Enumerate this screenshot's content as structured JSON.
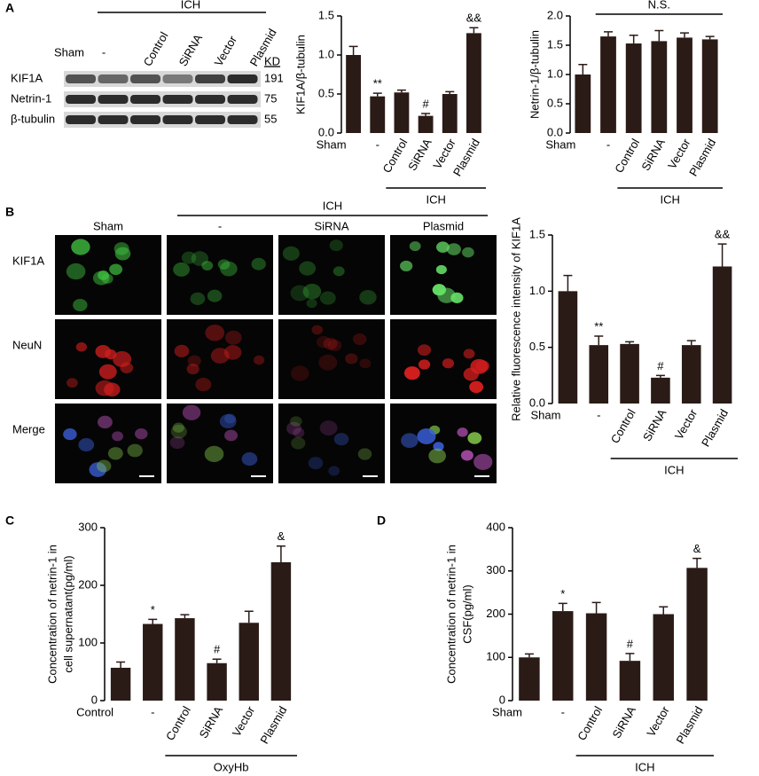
{
  "panel_labels": [
    "A",
    "B",
    "C",
    "D"
  ],
  "blot": {
    "group_label": "ICH",
    "lanes": [
      "Sham",
      "-",
      "Control",
      "SiRNA",
      "Vector",
      "Plasmid"
    ],
    "rows": [
      "KIF1A",
      "Netrin-1",
      "β-tubulin"
    ],
    "size_header": "KD",
    "sizes": [
      "191",
      "75",
      "55"
    ]
  },
  "images": {
    "group_label": "ICH",
    "columns": [
      "Sham",
      "-",
      "SiRNA",
      "Plasmid"
    ],
    "rows": [
      "KIF1A",
      "NeuN",
      "Merge"
    ]
  },
  "chart_data": [
    {
      "type": "bar",
      "y_label": [
        "KIF1A/β-tubulin"
      ],
      "categories": [
        "Sham",
        "-",
        "Control",
        "SiRNA",
        "Vector",
        "Plasmid"
      ],
      "values": [
        1.0,
        0.47,
        0.52,
        0.22,
        0.5,
        1.28
      ],
      "errors": [
        0.11,
        0.04,
        0.03,
        0.03,
        0.03,
        0.07
      ],
      "annotations": [
        null,
        "**",
        null,
        "#",
        null,
        "&&"
      ],
      "group_label": "ICH",
      "color": "#2b1b17",
      "ylim": [
        0,
        1.5
      ],
      "yticks": [
        {
          "value": 0,
          "label": "0.0"
        },
        0.5,
        {
          "value": 1,
          "label": "1.0"
        },
        1.5
      ]
    },
    {
      "type": "bar",
      "y_label": [
        "Netrin-1/β-tubulin"
      ],
      "categories": [
        "Sham",
        "-",
        "Control",
        "SiRNA",
        "Vector",
        "Plasmid"
      ],
      "values": [
        1.0,
        1.65,
        1.53,
        1.57,
        1.63,
        1.6
      ],
      "errors": [
        0.17,
        0.08,
        0.14,
        0.18,
        0.08,
        0.05
      ],
      "annotations": [
        null,
        null,
        null,
        null,
        null,
        null
      ],
      "top_label": "N.S.",
      "group_label": "ICH",
      "color": "#2b1b17",
      "ylim": [
        0,
        2
      ],
      "yticks": [
        {
          "value": 0,
          "label": "0.0"
        },
        0.5,
        {
          "value": 1,
          "label": "1.0"
        },
        1.5,
        {
          "value": 2,
          "label": "2.0"
        }
      ]
    },
    {
      "type": "bar",
      "y_label": [
        "Relative fluorescence intensity of KIF1A"
      ],
      "categories": [
        "Sham",
        "-",
        "Control",
        "SiRNA",
        "Vector",
        "Plasmid"
      ],
      "values": [
        1.0,
        0.52,
        0.53,
        0.23,
        0.52,
        1.22
      ],
      "errors": [
        0.14,
        0.08,
        0.02,
        0.02,
        0.04,
        0.2
      ],
      "annotations": [
        null,
        "**",
        null,
        "#",
        null,
        "&&"
      ],
      "group_label": "ICH",
      "color": "#2b1b17",
      "ylim": [
        0,
        1.5
      ],
      "yticks": [
        {
          "value": 0,
          "label": "0.0"
        },
        0.5,
        {
          "value": 1,
          "label": "1.0"
        },
        1.5
      ]
    },
    {
      "type": "bar",
      "y_label": [
        "Concentration of netrin-1 in",
        "cell supernatant(pg/ml)"
      ],
      "categories": [
        "Control",
        "-",
        "Control",
        "SiRNA",
        "Vector",
        "Plasmid"
      ],
      "values": [
        57,
        133,
        143,
        65,
        135,
        240
      ],
      "errors": [
        10,
        8,
        6,
        7,
        20,
        28
      ],
      "annotations": [
        null,
        "*",
        null,
        "#",
        null,
        "&"
      ],
      "group_label": "OxyHb",
      "color": "#2b1b17",
      "ylim": [
        0,
        300
      ],
      "yticks": [
        0,
        100,
        200,
        300
      ]
    },
    {
      "type": "bar",
      "y_label": [
        "Concentration of netrin-1 in",
        "CSF(pg/ml)"
      ],
      "categories": [
        "Sham",
        "-",
        "Control",
        "SiRNA",
        "Vector",
        "Plasmid"
      ],
      "values": [
        100,
        207,
        202,
        92,
        200,
        307
      ],
      "errors": [
        8,
        18,
        25,
        17,
        17,
        22
      ],
      "annotations": [
        null,
        "*",
        null,
        "#",
        null,
        "&"
      ],
      "group_label": "ICH",
      "color": "#2b1b17",
      "ylim": [
        0,
        400
      ],
      "yticks": [
        0,
        100,
        200,
        300,
        400
      ]
    }
  ]
}
